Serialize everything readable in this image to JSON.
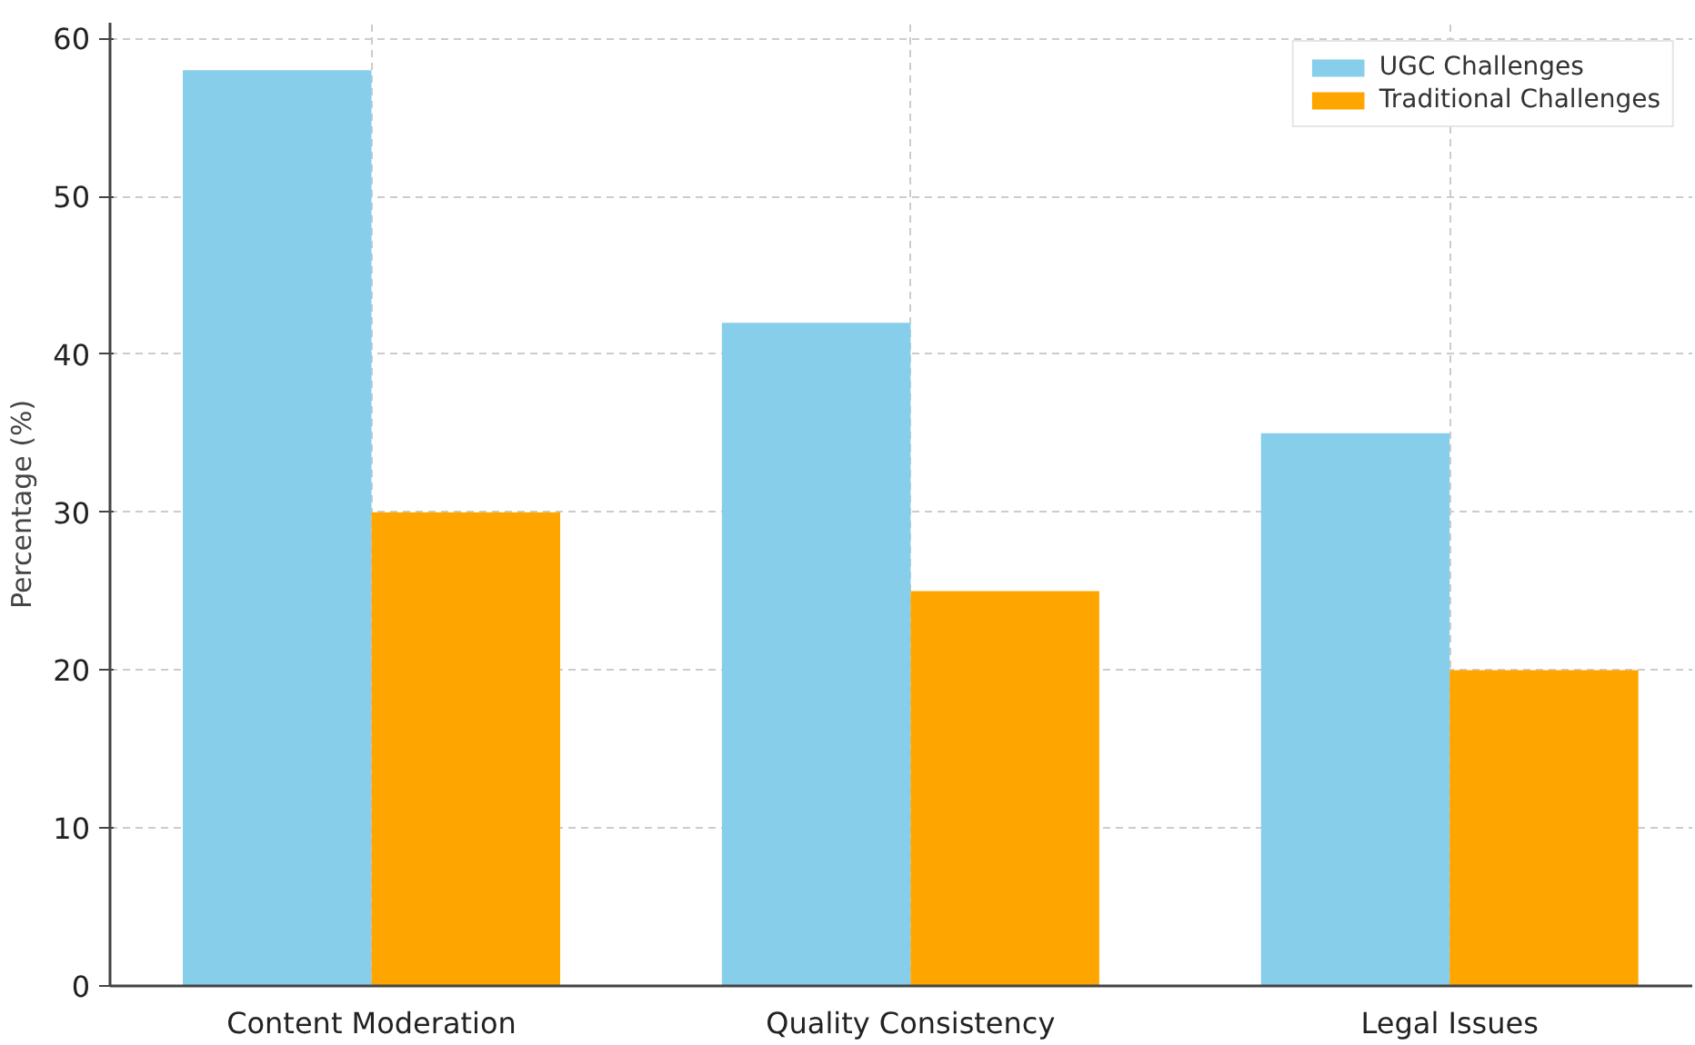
{
  "chart_data": {
    "type": "bar",
    "ylabel": "Percentage (%)",
    "categories": [
      "Content Moderation",
      "Quality Consistency",
      "Legal Issues"
    ],
    "series": [
      {
        "name": "UGC Challenges",
        "color": "#87ceeb",
        "values": [
          58,
          42,
          35
        ]
      },
      {
        "name": "Traditional Challenges",
        "color": "#ffa500",
        "values": [
          30,
          25,
          20
        ]
      }
    ],
    "ylim": [
      0,
      61
    ],
    "yticks": [
      0,
      10,
      20,
      30,
      40,
      50,
      60
    ],
    "grid": true,
    "legend": "top right"
  }
}
